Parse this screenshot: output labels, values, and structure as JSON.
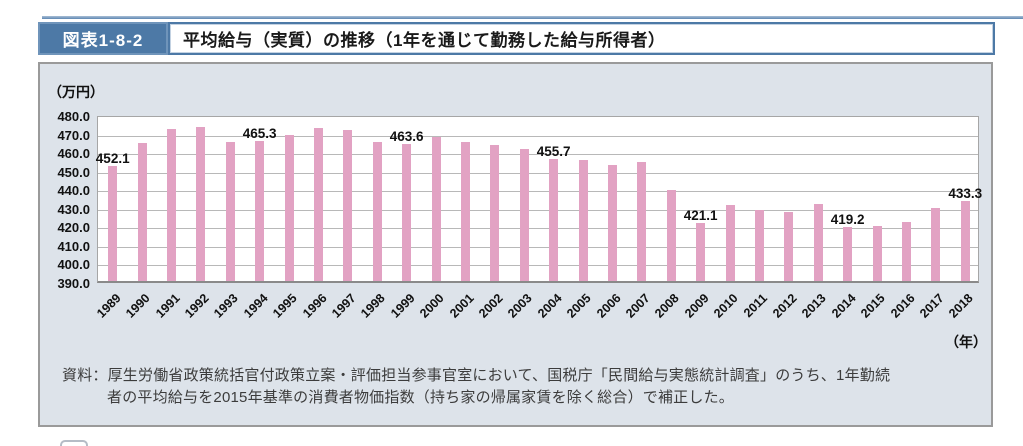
{
  "header": {
    "badge": "図表1-8-2",
    "title": "平均給与（実質）の推移（1年を通じて勤務した給与所得者）"
  },
  "chart_data": {
    "type": "bar",
    "title": "平均給与（実質）の推移（1年を通じて勤務した給与所得者）",
    "unit_label": "（万円）",
    "x_unit_label": "（年）",
    "ylim": [
      390.0,
      480.0
    ],
    "ytick_labels": [
      "480.0",
      "470.0",
      "460.0",
      "450.0",
      "440.0",
      "430.0",
      "420.0",
      "410.0",
      "400.0",
      "390.0"
    ],
    "grid": true,
    "bar_color": "#e2a2c3",
    "categories": [
      "1989",
      "1990",
      "1991",
      "1992",
      "1993",
      "1994",
      "1995",
      "1996",
      "1997",
      "1998",
      "1999",
      "2000",
      "2001",
      "2002",
      "2003",
      "2004",
      "2005",
      "2006",
      "2007",
      "2008",
      "2009",
      "2010",
      "2011",
      "2012",
      "2013",
      "2014",
      "2015",
      "2016",
      "2017",
      "2018"
    ],
    "values": [
      452.1,
      464.3,
      471.8,
      472.8,
      464.8,
      465.3,
      468.5,
      472.3,
      471.5,
      465.1,
      463.6,
      467.7,
      464.8,
      463.5,
      461.3,
      455.7,
      455.5,
      452.3,
      453.9,
      439.2,
      421.1,
      430.8,
      428.5,
      427.1,
      431.6,
      419.2,
      419.9,
      421.9,
      429.6,
      433.3
    ],
    "annotations": {
      "1989": "452.1",
      "1994": "465.3",
      "1999": "463.6",
      "2004": "455.7",
      "2009": "421.1",
      "2014": "419.2",
      "2018": "433.3"
    }
  },
  "source": {
    "line1": "資料：厚生労働省政策統括官付政策立案・評価担当参事官室において、国税庁「民間給与実態統計調査」のうち、1年勤続",
    "line2": "者の平均給与を2015年基準の消費者物価指数（持ち家の帰属家賃を除く総合）で補正した。"
  }
}
